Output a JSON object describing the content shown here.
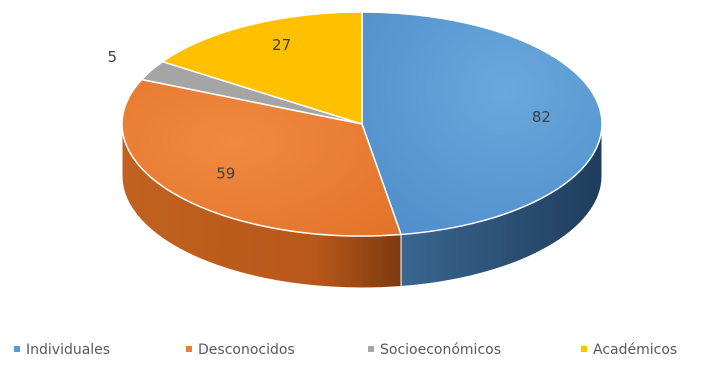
{
  "chart_data": {
    "type": "pie",
    "style": "3d",
    "categories": [
      "Individuales",
      "Desconocidos",
      "Socioeconómicos",
      "Académicos"
    ],
    "values": [
      82,
      59,
      5,
      27
    ],
    "colors": [
      "#5b9bd5",
      "#ed7d31",
      "#a5a5a5",
      "#ffc000"
    ],
    "data_labels": [
      "82",
      "59",
      "5",
      "27"
    ],
    "legend_position": "bottom"
  }
}
